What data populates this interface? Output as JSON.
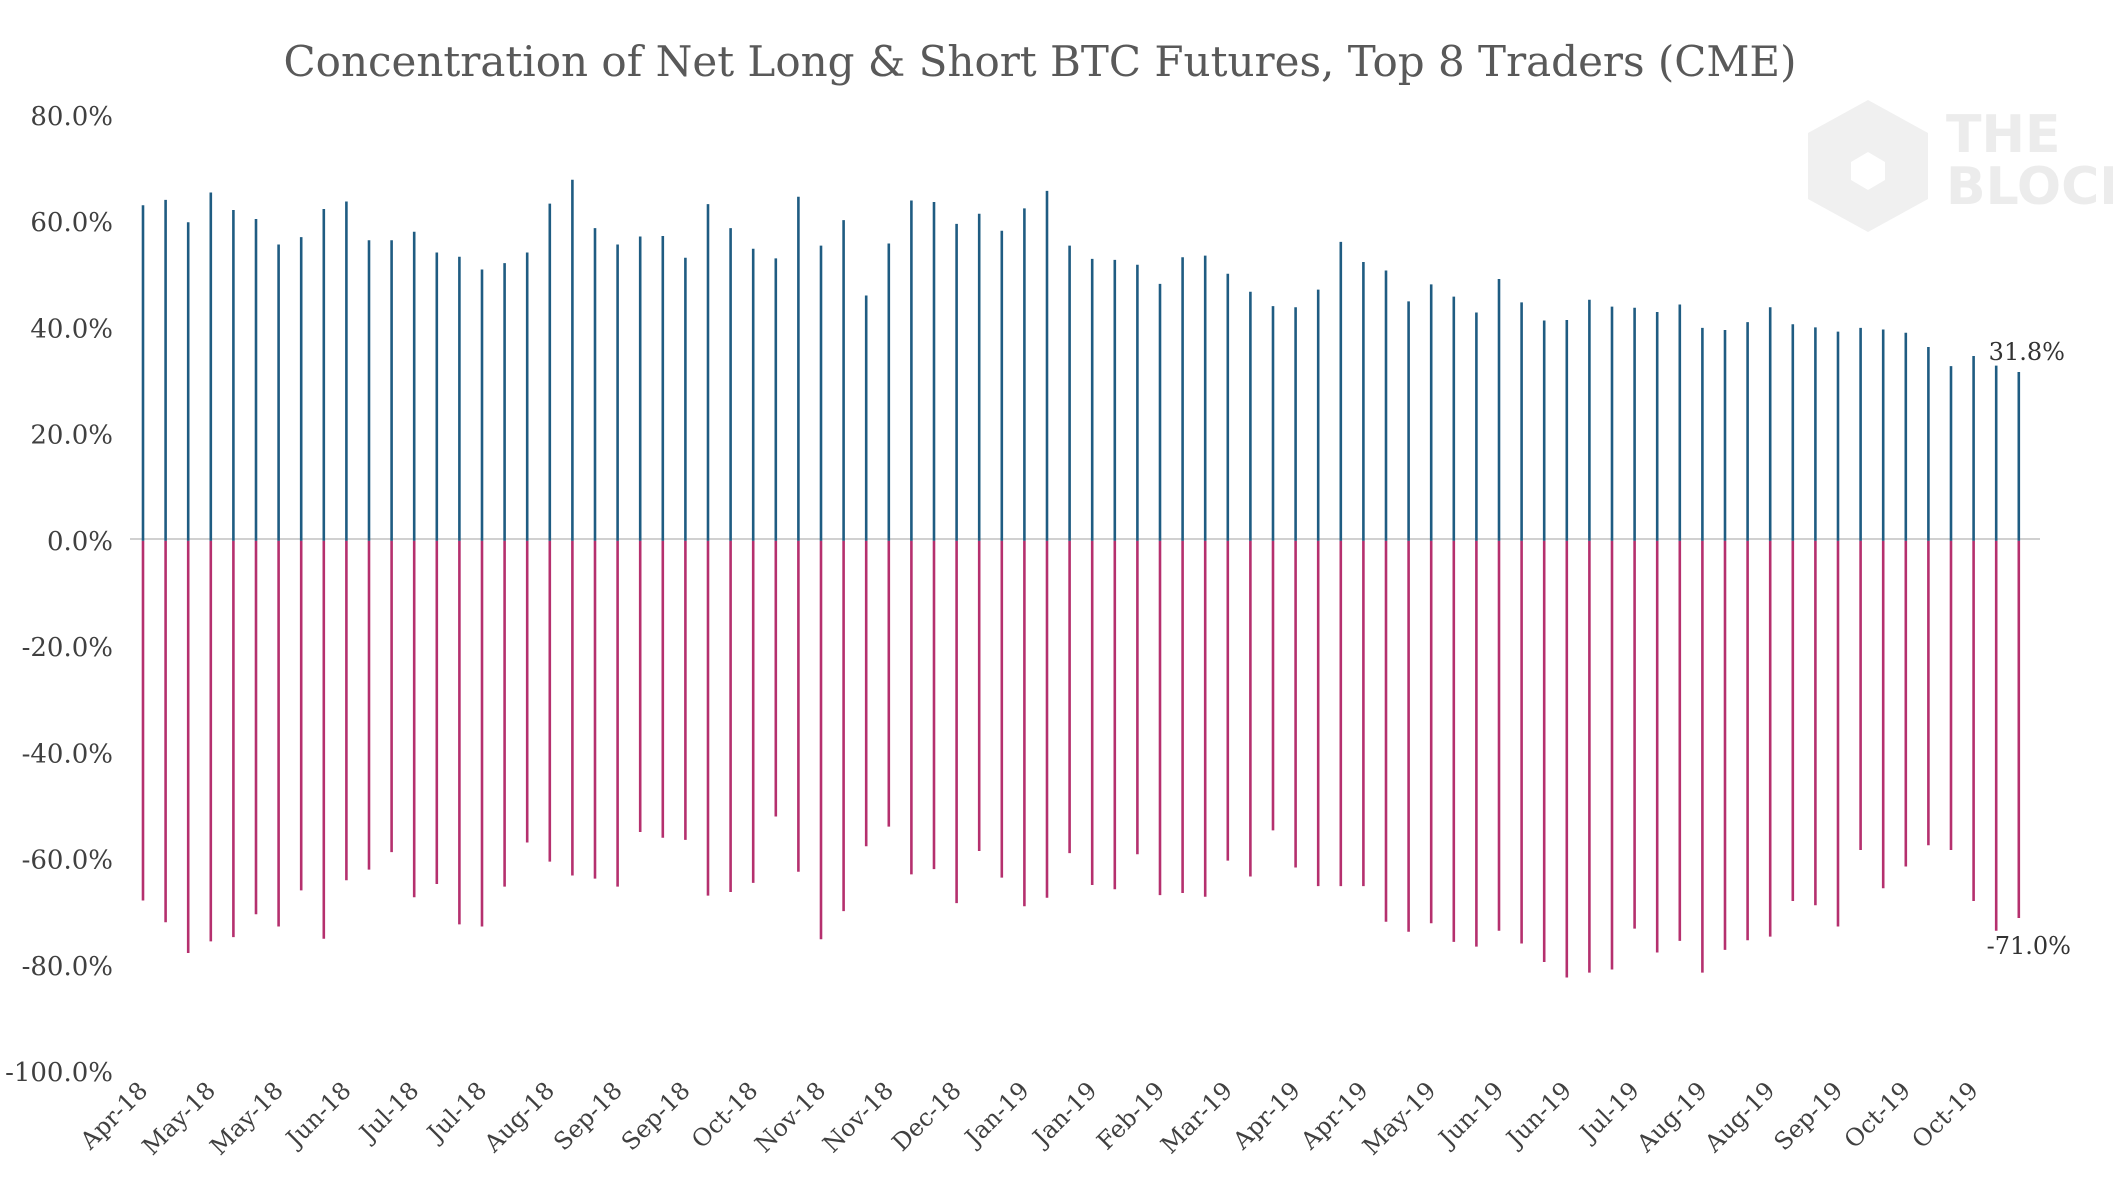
{
  "chart_data": {
    "type": "bar",
    "title": "Concentration of Net Long & Short BTC Futures, Top 8 Traders (CME)",
    "xlabel": "",
    "ylabel": "",
    "ylim": [
      -100,
      80
    ],
    "yticks": [
      "80.0%",
      "60.0%",
      "40.0%",
      "20.0%",
      "0.0%",
      "-20.0%",
      "-40.0%",
      "-60.0%",
      "-80.0%",
      "-100.0%"
    ],
    "ytick_values": [
      80,
      60,
      40,
      20,
      0,
      -20,
      -40,
      -60,
      -80,
      -100
    ],
    "xtick_labels": [
      "Apr-18",
      "May-18",
      "May-18",
      "Jun-18",
      "Jul-18",
      "Jul-18",
      "Aug-18",
      "Sep-18",
      "Sep-18",
      "Oct-18",
      "Nov-18",
      "Nov-18",
      "Dec-18",
      "Jan-19",
      "Jan-19",
      "Feb-19",
      "Mar-19",
      "Apr-19",
      "Apr-19",
      "May-19",
      "Jun-19",
      "Jun-19",
      "Jul-19",
      "Aug-19",
      "Aug-19",
      "Sep-19",
      "Oct-19",
      "Oct-19"
    ],
    "grid": false,
    "legend": "none",
    "series": [
      {
        "color": "#1f5c82",
        "values": [
          63.2,
          64.2,
          60.0,
          65.6,
          62.3,
          60.6,
          55.8,
          57.2,
          62.5,
          63.9,
          56.6,
          56.6,
          58.2,
          54.3,
          53.5,
          51.1,
          52.3,
          54.3,
          63.5,
          68.0,
          58.9,
          55.8,
          57.3,
          57.4,
          53.3,
          63.4,
          58.9,
          55.0,
          53.2,
          64.8,
          55.6,
          60.4,
          46.2,
          56.0,
          64.1,
          63.8,
          59.7,
          61.6,
          58.4,
          62.6,
          65.9,
          55.6,
          53.1,
          52.9,
          52.0,
          48.4,
          53.4,
          53.7,
          50.3,
          46.9,
          44.2,
          44.0,
          47.3,
          56.3,
          52.5,
          50.9,
          45.1,
          48.3,
          46.0,
          43.0,
          49.3,
          44.9,
          41.5,
          41.6,
          45.4,
          44.1,
          43.9,
          43.1,
          44.5,
          40.1,
          39.7,
          41.2,
          44.0,
          40.8,
          40.2,
          39.4,
          40.1,
          39.8,
          39.2,
          36.5,
          32.9,
          34.8,
          33.0,
          31.8
        ]
      },
      {
        "color": "#b5306e",
        "values": [
          -67.7,
          -71.8,
          -77.6,
          -75.4,
          -74.6,
          -70.3,
          -72.6,
          -65.8,
          -74.9,
          -63.9,
          -61.9,
          -58.6,
          -67.1,
          -64.6,
          -72.2,
          -72.6,
          -65.1,
          -56.8,
          -60.4,
          -63.0,
          -63.6,
          -65.1,
          -54.8,
          -55.9,
          -56.3,
          -66.8,
          -66.1,
          -64.4,
          -51.9,
          -62.3,
          -75.0,
          -69.7,
          -57.5,
          -53.8,
          -62.8,
          -61.8,
          -68.2,
          -58.4,
          -63.4,
          -68.8,
          -67.2,
          -58.8,
          -64.8,
          -65.6,
          -59.0,
          -66.7,
          -66.3,
          -67.0,
          -60.2,
          -63.2,
          -54.5,
          -61.5,
          -65.0,
          -65.0,
          -65.0,
          -71.7,
          -73.6,
          -72.0,
          -75.5,
          -76.4,
          -73.4,
          -75.8,
          -79.3,
          -82.2,
          -81.3,
          -80.7,
          -73.0,
          -77.5,
          -75.3,
          -81.3,
          -77.0,
          -75.2,
          -74.5,
          -67.8,
          -68.6,
          -72.6,
          -58.2,
          -65.4,
          -61.3,
          -57.3,
          -58.2,
          -67.8,
          -73.4,
          -71.0
        ]
      }
    ],
    "annotations": [
      "31.8%",
      "-71.0%"
    ]
  },
  "watermark": {
    "line1": "THE",
    "line2": "BLOCK"
  }
}
